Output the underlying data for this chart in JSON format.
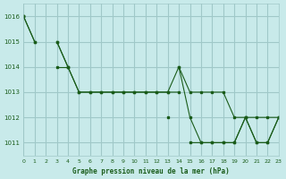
{
  "title": "Graphe pression niveau de la mer (hPa)",
  "background_color": "#c8eaea",
  "grid_color": "#a0c8c8",
  "line_color": "#1a5c1a",
  "marker_color": "#1a5c1a",
  "xlim": [
    0,
    23
  ],
  "ylim": [
    1010.5,
    1016.5
  ],
  "yticks": [
    1011,
    1012,
    1013,
    1014,
    1015,
    1016
  ],
  "xticks": [
    0,
    1,
    2,
    3,
    4,
    5,
    6,
    7,
    8,
    9,
    10,
    11,
    12,
    13,
    14,
    15,
    16,
    17,
    18,
    19,
    20,
    21,
    22,
    23
  ],
  "series": [
    [
      1016,
      1015,
      null,
      1015,
      1014,
      1013,
      1013,
      1013,
      1013,
      1013,
      1013,
      1013,
      1013,
      1013,
      1013,
      null,
      null,
      null,
      null,
      null,
      null,
      null,
      null,
      null
    ],
    [
      1016,
      1015,
      null,
      1015,
      1014,
      1013,
      1013,
      1013,
      1013,
      1013,
      1013,
      1013,
      1013,
      1013,
      1014,
      1013,
      1013,
      1013,
      1013,
      1012,
      1012,
      1012,
      1012,
      1012
    ],
    [
      1016,
      null,
      null,
      1014,
      1014,
      null,
      null,
      null,
      null,
      null,
      null,
      null,
      null,
      null,
      1014,
      1012,
      1011,
      1011,
      1011,
      1011,
      1012,
      1011,
      1011,
      1012
    ],
    [
      1016,
      null,
      null,
      null,
      null,
      null,
      null,
      null,
      null,
      null,
      null,
      null,
      null,
      1012,
      null,
      1011,
      1011,
      1011,
      1011,
      1011,
      1012,
      1011,
      1011,
      1012
    ]
  ]
}
